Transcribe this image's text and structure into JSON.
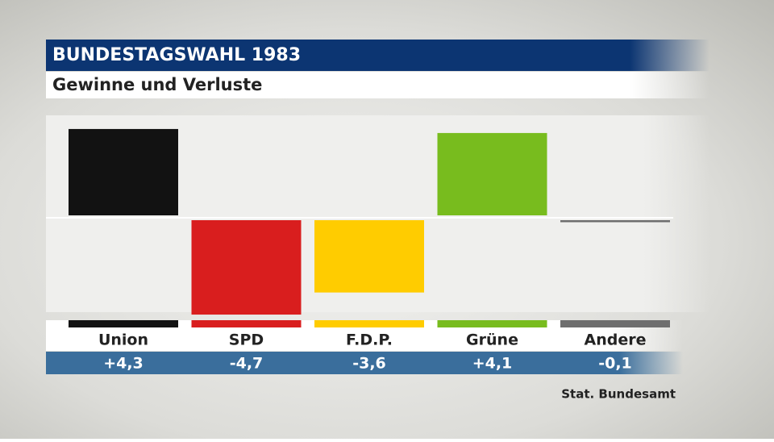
{
  "chart_data": {
    "type": "bar",
    "title": "BUNDESTAGSWAHL 1983",
    "subtitle": "Gewinne und Verluste",
    "categories": [
      "Union",
      "SPD",
      "F.D.P.",
      "Grüne",
      "Andere"
    ],
    "values": [
      4.3,
      -4.7,
      -3.6,
      4.1,
      -0.1
    ],
    "value_labels": [
      "+4,3",
      "-4,7",
      "-3,6",
      "+4,1",
      "-0,1"
    ],
    "colors": [
      "#121212",
      "#d91e1e",
      "#ffcc00",
      "#78bc1e",
      "#6e6e6e"
    ],
    "source": "Stat. Bundesamt"
  }
}
